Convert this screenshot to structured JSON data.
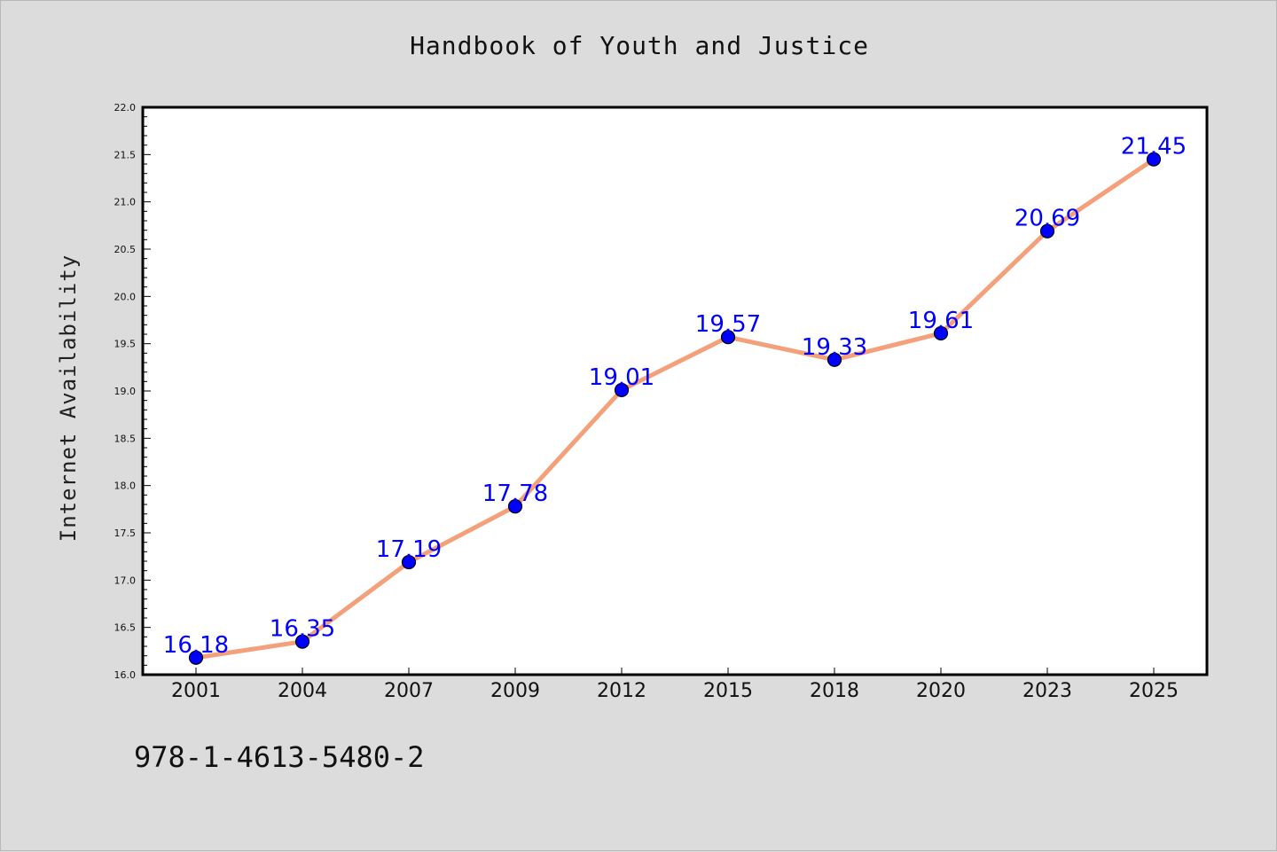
{
  "chart_data": {
    "type": "line",
    "title": "Handbook of Youth and Justice",
    "xlabel": "",
    "ylabel": "Internet Availability",
    "categories": [
      "2001",
      "2004",
      "2007",
      "2009",
      "2012",
      "2015",
      "2018",
      "2020",
      "2023",
      "2025"
    ],
    "series": [
      {
        "values": [
          16.18,
          16.35,
          17.19,
          17.78,
          19.01,
          19.57,
          19.33,
          19.61,
          20.69,
          21.45
        ]
      }
    ],
    "data_labels": [
      "16.18",
      "16.35",
      "17.19",
      "17.78",
      "19.01",
      "19.57",
      "19.33",
      "19.61",
      "20.69",
      "21.45"
    ],
    "ylim": [
      16.0,
      22.0
    ],
    "y_ticks": [
      "16.0",
      "16.5",
      "17.0",
      "17.5",
      "18.0",
      "18.5",
      "19.0",
      "19.5",
      "20.0",
      "20.5",
      "21.0",
      "21.5",
      "22.0"
    ],
    "grid": false,
    "legend": "none",
    "colors": {
      "line": "#f4a07a",
      "marker": "#0000ff",
      "marker_edge": "#000000",
      "data_label": "#0000ff",
      "background": "#dcdcdc",
      "plot_background": "#ffffff"
    }
  },
  "footer": {
    "identifier": "978-1-4613-5480-2"
  }
}
